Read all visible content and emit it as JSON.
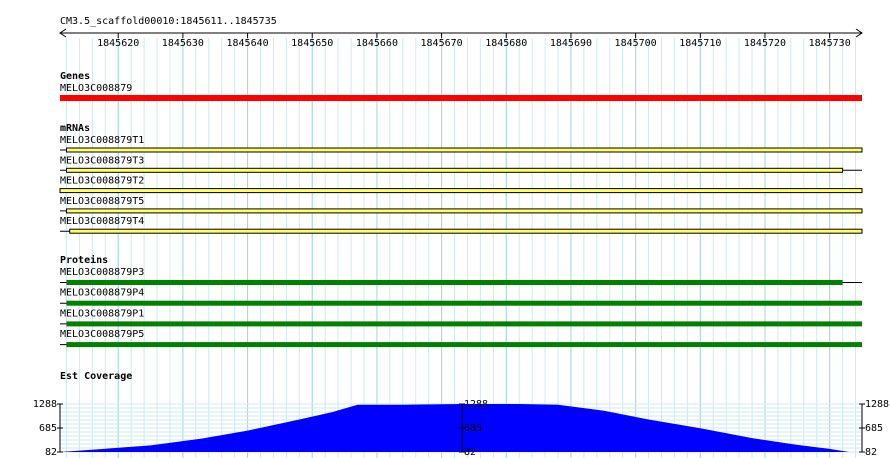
{
  "header": {
    "title": "CM3.5_scaffold00010:1845611..1845735"
  },
  "ruler": {
    "range": [
      1845611,
      1845735
    ],
    "ticks": [
      1845620,
      1845630,
      1845640,
      1845650,
      1845660,
      1845670,
      1845680,
      1845690,
      1845700,
      1845710,
      1845720,
      1845730
    ]
  },
  "tracks": [
    {
      "label": "Genes",
      "color": "#ff0000",
      "features": [
        {
          "name": "MELO3C008879",
          "start": 1845611,
          "end": 1845735
        }
      ]
    },
    {
      "label": "mRNAs",
      "color": "#ffff66",
      "features": [
        {
          "name": "MELO3C008879T1",
          "start": 1845611,
          "end": 1845735,
          "block_start": 1845612,
          "block_end": 1845735
        },
        {
          "name": "MELO3C008879T3",
          "start": 1845611,
          "end": 1845735,
          "block_start": 1845612,
          "block_end": 1845732
        },
        {
          "name": "MELO3C008879T2",
          "start": 1845611,
          "end": 1845735,
          "block_start": 1845611,
          "block_end": 1845735
        },
        {
          "name": "MELO3C008879T5",
          "start": 1845611,
          "end": 1845735,
          "block_start": 1845612,
          "block_end": 1845735
        },
        {
          "name": "MELO3C008879T4",
          "start": 1845611,
          "end": 1845735,
          "block_start": 1845612.5,
          "block_end": 1845735
        }
      ]
    },
    {
      "label": "Proteins",
      "color": "#008000",
      "features": [
        {
          "name": "MELO3C008879P3",
          "start": 1845611,
          "end": 1845735,
          "block_start": 1845612,
          "block_end": 1845732
        },
        {
          "name": "MELO3C008879P4",
          "start": 1845611,
          "end": 1845735,
          "block_start": 1845612,
          "block_end": 1845735
        },
        {
          "name": "MELO3C008879P1",
          "start": 1845611,
          "end": 1845735,
          "block_start": 1845612,
          "block_end": 1845735
        },
        {
          "name": "MELO3C008879P5",
          "start": 1845611,
          "end": 1845735,
          "block_start": 1845612,
          "block_end": 1845735
        }
      ]
    }
  ],
  "coverage": {
    "label": "Est Coverage",
    "color": "#0000ff",
    "x": [
      1845611,
      1845617,
      1845625,
      1845633,
      1845640,
      1845648,
      1845653,
      1845657,
      1845664,
      1845673,
      1845682,
      1845688,
      1845695,
      1845702,
      1845710,
      1845718,
      1845725,
      1845730,
      1845733
    ],
    "values": [
      82,
      150,
      250,
      420,
      620,
      900,
      1080,
      1270,
      1270,
      1288,
      1288,
      1270,
      1120,
      900,
      680,
      430,
      260,
      160,
      82
    ],
    "ylim": [
      82,
      1288
    ],
    "yticks": [
      82,
      685,
      1288
    ]
  }
}
